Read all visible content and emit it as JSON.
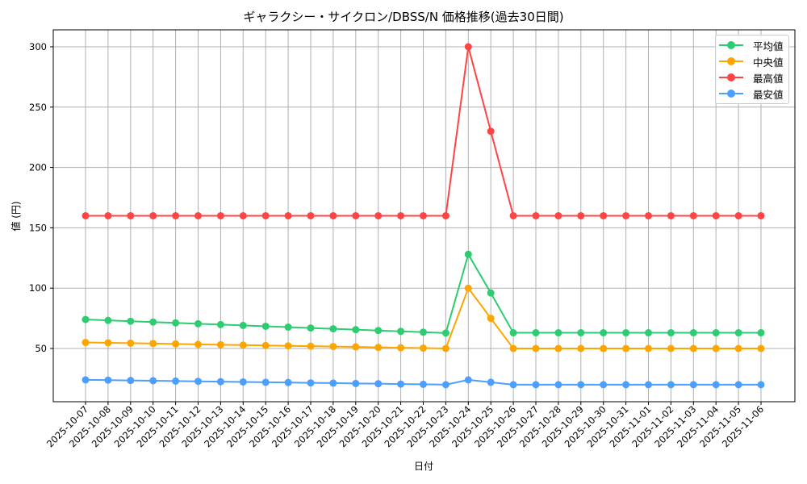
{
  "chart_data": {
    "type": "line",
    "title": "ギャラクシー・サイクロン/DBSS/N 価格推移(過去30日間)",
    "xlabel": "日付",
    "ylabel": "値 (円)",
    "ylim": [
      13,
      313
    ],
    "yticks": [
      50,
      100,
      150,
      200,
      250,
      300
    ],
    "grid": true,
    "legend_position": "upper right",
    "x": [
      "2025-10-07",
      "2025-10-08",
      "2025-10-09",
      "2025-10-10",
      "2025-10-11",
      "2025-10-12",
      "2025-10-13",
      "2025-10-14",
      "2025-10-15",
      "2025-10-16",
      "2025-10-17",
      "2025-10-18",
      "2025-10-19",
      "2025-10-20",
      "2025-10-21",
      "2025-10-22",
      "2025-10-23",
      "2025-10-24",
      "2025-10-25",
      "2025-10-26",
      "2025-10-27",
      "2025-10-28",
      "2025-10-29",
      "2025-10-30",
      "2025-10-31",
      "2025-11-01",
      "2025-11-02",
      "2025-11-03",
      "2025-11-04",
      "2025-11-05",
      "2025-11-06"
    ],
    "series": [
      {
        "name": "平均値",
        "color": "#2ecc71",
        "values": [
          74,
          73.3,
          72.6,
          71.9,
          71.2,
          70.5,
          69.8,
          69.1,
          68.4,
          67.7,
          67,
          66.3,
          65.6,
          64.9,
          64.2,
          63.5,
          62.8,
          128,
          96,
          63,
          63,
          63,
          63,
          63,
          63,
          63,
          63,
          63,
          63,
          63,
          63
        ]
      },
      {
        "name": "中央値",
        "color": "#ffa500",
        "values": [
          55,
          54.7,
          54.4,
          54.1,
          53.8,
          53.4,
          53.1,
          52.8,
          52.5,
          52.2,
          51.9,
          51.6,
          51.3,
          50.9,
          50.6,
          50.3,
          50,
          100,
          75,
          50,
          50,
          50,
          50,
          50,
          50,
          50,
          50,
          50,
          50,
          50,
          50
        ]
      },
      {
        "name": "最高値",
        "color": "#ff4444",
        "values": [
          160,
          160,
          160,
          160,
          160,
          160,
          160,
          160,
          160,
          160,
          160,
          160,
          160,
          160,
          160,
          160,
          160,
          300,
          230,
          160,
          160,
          160,
          160,
          160,
          160,
          160,
          160,
          160,
          160,
          160,
          160
        ]
      },
      {
        "name": "最安値",
        "color": "#4d9fff",
        "values": [
          24,
          23.8,
          23.5,
          23.3,
          23,
          22.8,
          22.5,
          22.3,
          22,
          21.8,
          21.5,
          21.3,
          21,
          20.8,
          20.5,
          20.3,
          20,
          24,
          22,
          20,
          20,
          20,
          20,
          20,
          20,
          20,
          20,
          20,
          20,
          20,
          20
        ]
      }
    ]
  }
}
